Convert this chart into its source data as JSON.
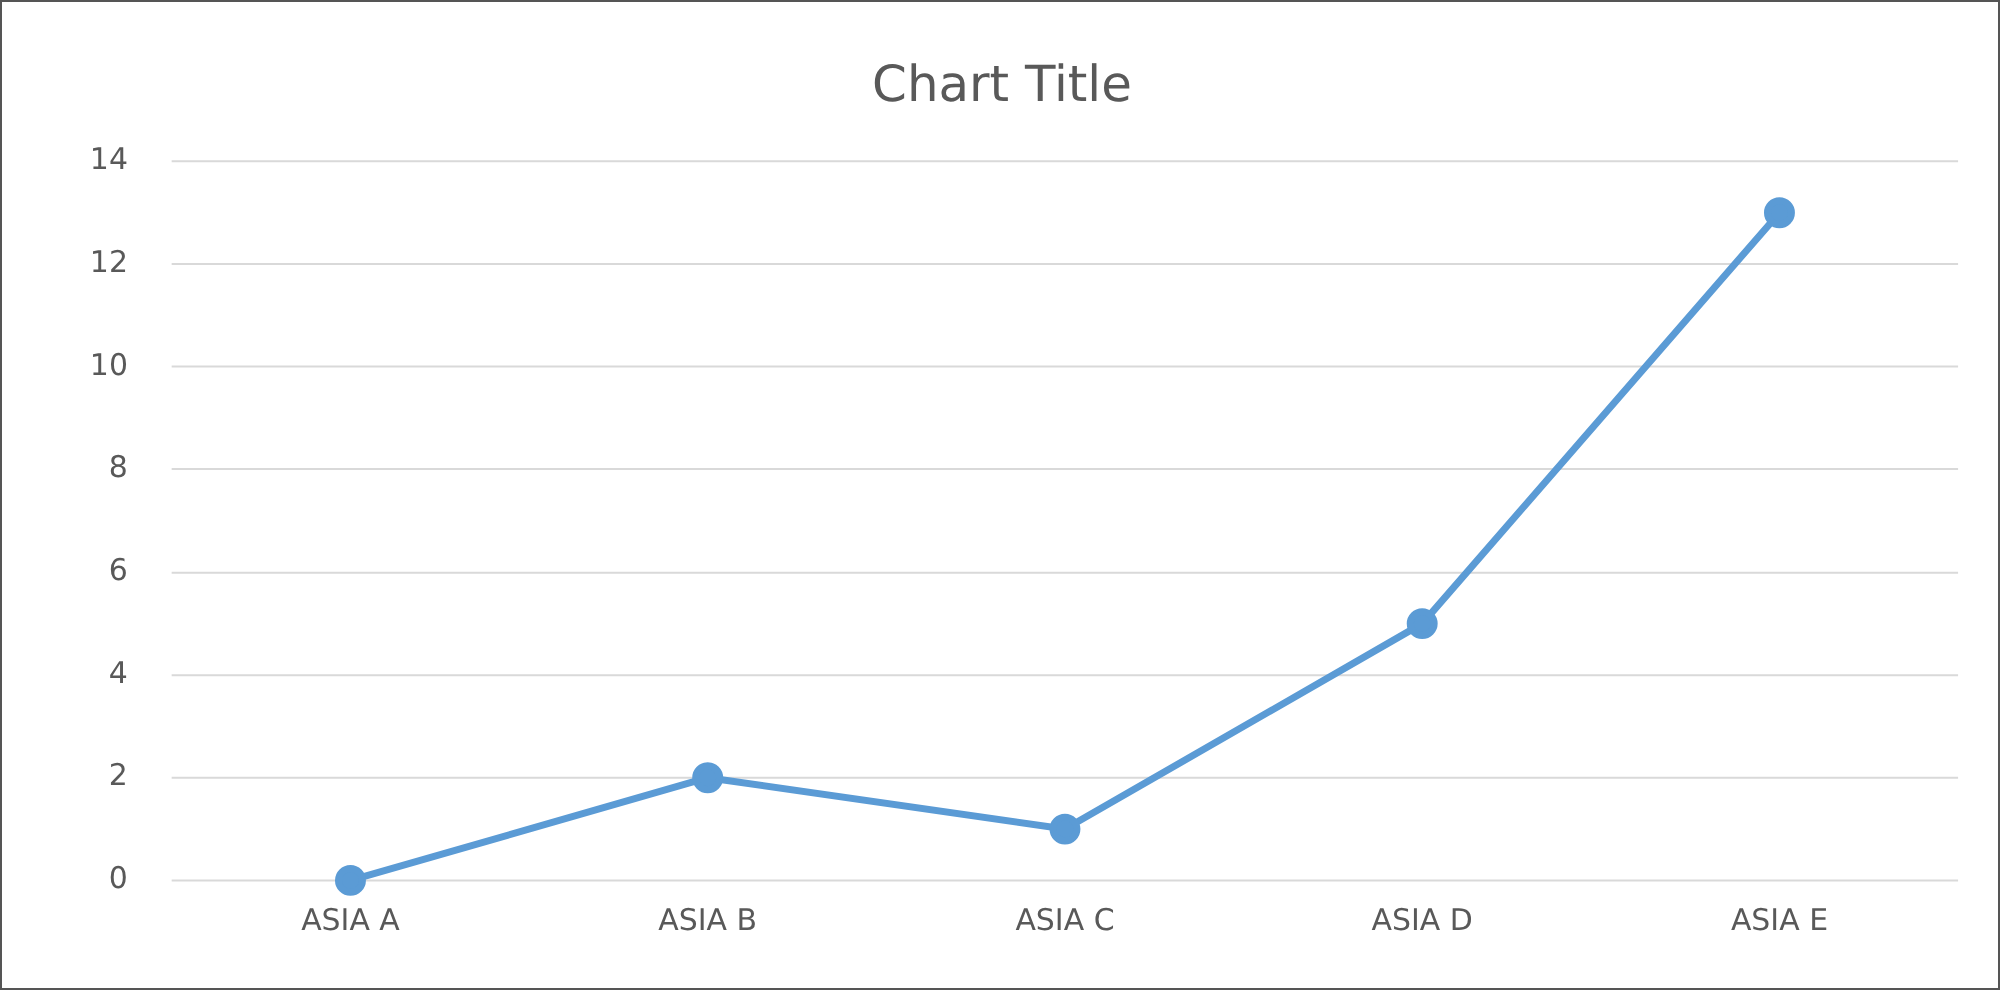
{
  "chart_data": {
    "type": "line",
    "title": "Chart Title",
    "categories": [
      "ASIA A",
      "ASIA B",
      "ASIA C",
      "ASIA D",
      "ASIA E"
    ],
    "series": [
      {
        "color": "#5b9bd5",
        "values": [
          0,
          2,
          1,
          5,
          13
        ]
      }
    ],
    "ylim": [
      0,
      14
    ],
    "yticks": [
      0,
      2,
      4,
      6,
      8,
      10,
      12,
      14
    ],
    "grid": "y",
    "legend": false,
    "marker": "circle",
    "line_style": "solid"
  }
}
